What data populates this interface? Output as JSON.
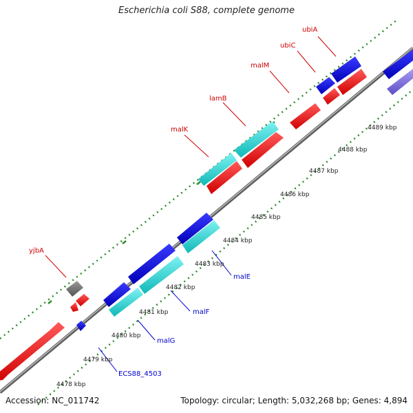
{
  "title": "Escherichia coli S88, complete genome",
  "footer": {
    "accession": "Accession: NC_011742",
    "summary": "Topology: circular; Length: 5,032,268 bp; Genes: 4,894"
  },
  "colors": {
    "background": "#ffffff",
    "backbone": "#888888",
    "ruler_dots": "#2e8b2e",
    "forward_gene": "#ff0000",
    "reverse_gene": "#0000ff",
    "cyan_gene": "#1fd8d8",
    "gray_gene": "#777777",
    "purple_gene": "#7a6cd8",
    "label_forward": "#cc0000",
    "label_reverse": "#0000cc"
  },
  "ruler_labels": [
    "4478 kbp",
    "4479 kbp",
    "4480 kbp",
    "4481 kbp",
    "4482 kbp",
    "4483 kbp",
    "4484 kbp",
    "4485 kbp",
    "4486 kbp",
    "4487 kbp",
    "4488 kbp",
    "4489 kbp"
  ],
  "upper_labels": [
    "yjbA",
    "malK",
    "lamB",
    "malM",
    "ubiC",
    "ubiA"
  ],
  "lower_labels": [
    "ECS88_4503",
    "malG",
    "malF",
    "malE"
  ]
}
